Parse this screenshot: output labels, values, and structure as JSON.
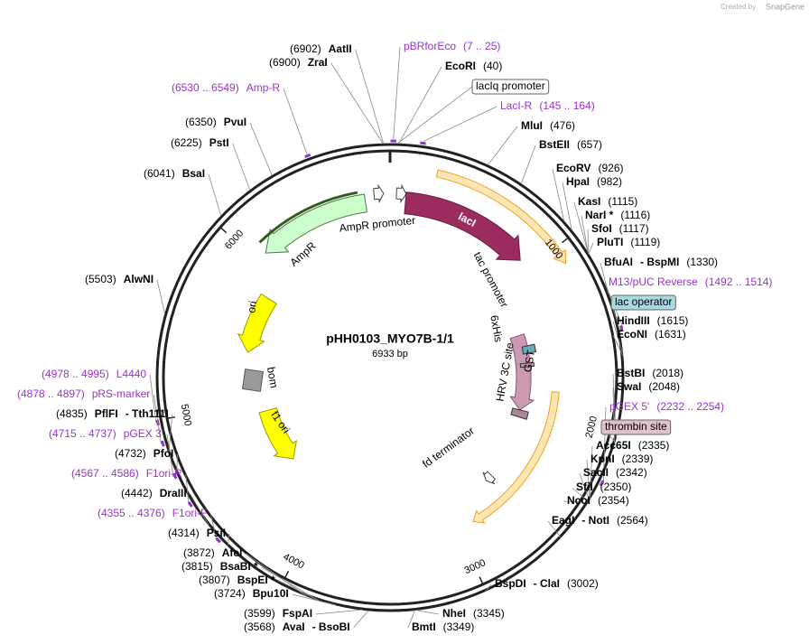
{
  "credit": {
    "prefix": "Created by",
    "brand": "SnapGene"
  },
  "plasmid": {
    "name": "pHH0103_MYO7B-1/1",
    "length": "6933 bp"
  },
  "ticks": [
    1000,
    2000,
    3000,
    4000,
    5000,
    6000
  ],
  "sites": [
    {
      "position": "(6902)",
      "names": [
        "AatII"
      ]
    },
    {
      "position": "(6900)",
      "names": [
        "ZraI"
      ]
    },
    {
      "position": "(40)",
      "names": [
        "EcoRI"
      ]
    },
    {
      "position": "(476)",
      "names": [
        "MluI"
      ]
    },
    {
      "position": "(6350)",
      "names": [
        "PvuI"
      ]
    },
    {
      "position": "(6225)",
      "names": [
        "PstI"
      ]
    },
    {
      "position": "(657)",
      "names": [
        "BstEII"
      ]
    },
    {
      "position": "(6041)",
      "names": [
        "BsaI"
      ]
    },
    {
      "position": "(926)",
      "names": [
        "EcoRV"
      ]
    },
    {
      "position": "(982)",
      "names": [
        "HpaI"
      ]
    },
    {
      "position": "(1115)",
      "names": [
        "KasI"
      ]
    },
    {
      "position": "(1116)",
      "names": [
        "NarI *"
      ]
    },
    {
      "position": "(1117)",
      "names": [
        "SfoI"
      ]
    },
    {
      "position": "(1119)",
      "names": [
        "PluTI"
      ]
    },
    {
      "position": "(1330)",
      "names": [
        "BfuAI",
        "- BspMI"
      ]
    },
    {
      "position": "(5503)",
      "names": [
        "AlwNI"
      ]
    },
    {
      "position": "(1615)",
      "names": [
        "HindIII"
      ]
    },
    {
      "position": "(1631)",
      "names": [
        "EcoNI"
      ]
    },
    {
      "position": "(2018)",
      "names": [
        "BstBI"
      ]
    },
    {
      "position": "(2048)",
      "names": [
        "SwaI"
      ]
    },
    {
      "position": "(2335)",
      "names": [
        "Acc65I"
      ]
    },
    {
      "position": "(2339)",
      "names": [
        "KpnI"
      ]
    },
    {
      "position": "(2342)",
      "names": [
        "SacII"
      ]
    },
    {
      "position": "(2350)",
      "names": [
        "SfiI"
      ]
    },
    {
      "position": "(2354)",
      "names": [
        "NcoI"
      ]
    },
    {
      "position": "(2564)",
      "names": [
        "EagI",
        "- NotI"
      ]
    },
    {
      "position": "(3002)",
      "names": [
        "BspDI",
        "- ClaI"
      ]
    },
    {
      "position": "(3345)",
      "names": [
        "NheI"
      ]
    },
    {
      "position": "(3349)",
      "names": [
        "BmtI"
      ]
    },
    {
      "position": "(3599)",
      "names": [
        "FspAI"
      ]
    },
    {
      "position": "(3568)",
      "names": [
        "AvaI",
        "- BsoBI"
      ]
    },
    {
      "position": "(3724)",
      "names": [
        "Bpu10I"
      ]
    },
    {
      "position": "(3807)",
      "names": [
        "BspEI *"
      ]
    },
    {
      "position": "(3815)",
      "names": [
        "BsaBI *"
      ]
    },
    {
      "position": "(3872)",
      "names": [
        "AfeI"
      ]
    },
    {
      "position": "(4314)",
      "names": [
        "PsiI"
      ]
    },
    {
      "position": "(4442)",
      "names": [
        "DraIII"
      ]
    },
    {
      "position": "(4732)",
      "names": [
        "PfoI"
      ]
    },
    {
      "position": "(4835)",
      "names": [
        "PflFI",
        "- Tth111I"
      ]
    }
  ],
  "primers": [
    {
      "name": "pBRforEco",
      "range": "(7 .. 25)"
    },
    {
      "name": "LacI-R",
      "range": "(145 .. 164)"
    },
    {
      "name": "Amp-R",
      "range": "(6530 .. 6549)"
    },
    {
      "name": "M13/pUC Reverse",
      "range": "(1492 .. 1514)"
    },
    {
      "name": "pGEX 5'",
      "range": "(2232 .. 2254)"
    },
    {
      "name": "L4440",
      "range": "(4978 .. 4995)"
    },
    {
      "name": "pRS-marker",
      "range": "(4878 .. 4897)"
    },
    {
      "name": "pGEX 3'",
      "range": "(4715 .. 4737)"
    },
    {
      "name": "F1ori-R",
      "range": "(4567 .. 4586)"
    },
    {
      "name": "F1ori-F",
      "range": "(4355 .. 4376)"
    }
  ],
  "boxed_features": [
    "lacIq promoter",
    "lac operator",
    "thrombin site"
  ],
  "features": [
    "AmpR promoter",
    "lacI",
    "tac promoter",
    "AmpR",
    "ori",
    "bom",
    "f1 ori",
    "6xHis",
    "HRV 3C site",
    "GST",
    "fd terminator"
  ]
}
